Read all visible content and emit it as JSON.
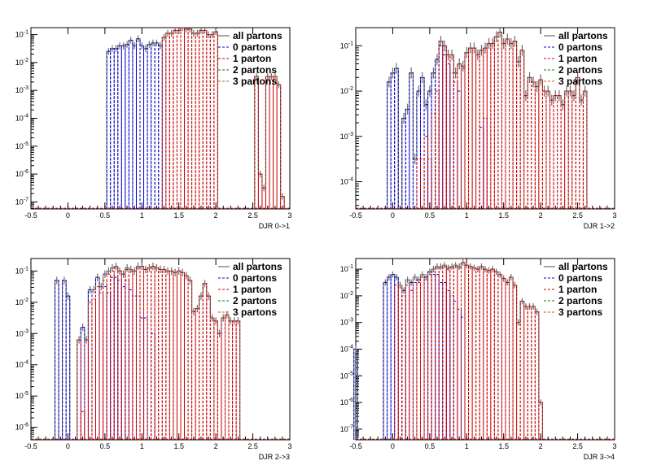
{
  "colors": {
    "all": "#6e6e6e",
    "zero": "#0000cc",
    "one": "#cc0000",
    "two": "#008800",
    "three": "#cc5500",
    "frame": "#000000"
  },
  "legend": {
    "entries": [
      {
        "key": "all",
        "label": "all partons"
      },
      {
        "key": "zero",
        "label": "0 partons"
      },
      {
        "key": "one",
        "label": "1 parton"
      },
      {
        "key": "two",
        "label": "2 partons"
      },
      {
        "key": "three",
        "label": "3 partons"
      }
    ]
  },
  "chart_data": [
    {
      "type": "line",
      "xlabel": "DJR 0->1",
      "ylabel": "",
      "xlim": [
        -0.5,
        3
      ],
      "ylim_log10": [
        -7.25,
        -0.75
      ],
      "xticks": [
        "-0.5",
        "0",
        "0.5",
        "1",
        "1.5",
        "2",
        "2.5",
        "3"
      ],
      "yticks": [
        "10^-7",
        "10^-6",
        "10^-5",
        "10^-4",
        "10^-3",
        "10^-2",
        "10^-1"
      ],
      "series": [
        {
          "name": "all partons",
          "key": "all",
          "step": true,
          "x": [
            0.55,
            0.6,
            0.65,
            0.7,
            0.75,
            0.8,
            0.85,
            0.9,
            0.95,
            1.0,
            1.05,
            1.1,
            1.15,
            1.2,
            1.25,
            1.3,
            1.35,
            1.4,
            1.45,
            1.5,
            1.55,
            1.6,
            1.65,
            1.7,
            1.75,
            1.8,
            1.85,
            1.9,
            1.95,
            2.0,
            2.55,
            2.6,
            2.65,
            2.7,
            2.75,
            2.8,
            2.85,
            2.9
          ],
          "y": [
            -1.6,
            -1.5,
            -1.5,
            -1.4,
            -1.4,
            -1.35,
            -1.2,
            -1.4,
            -1.15,
            -1.4,
            -1.5,
            -1.35,
            -1.3,
            -1.3,
            -1.4,
            -1.1,
            -0.95,
            -0.95,
            -0.85,
            -0.85,
            -0.75,
            -0.8,
            -0.8,
            -0.95,
            -0.95,
            -0.85,
            -0.85,
            -1.0,
            -1.0,
            -0.9,
            -2.5,
            -6.0,
            -6.5,
            -2.5,
            -2.5,
            -2.5,
            -2.8,
            -6.8
          ]
        },
        {
          "name": "0 partons",
          "key": "zero",
          "x": [
            0.55,
            0.6,
            0.65,
            0.7,
            0.75,
            0.8,
            0.85,
            0.9,
            0.95,
            1.0,
            1.05,
            1.1,
            1.15,
            1.2,
            1.25
          ],
          "y": [
            -1.6,
            -1.5,
            -1.5,
            -1.4,
            -1.4,
            -1.35,
            -1.2,
            -1.4,
            -1.15,
            -1.4,
            -1.5,
            -1.35,
            -1.3,
            -1.3,
            -1.4
          ]
        },
        {
          "name": "1 parton",
          "key": "one",
          "x": [
            1.3,
            1.35,
            1.4,
            1.45,
            1.5,
            1.55,
            1.6,
            1.65,
            1.7,
            1.75,
            1.8,
            1.85,
            1.9,
            1.95,
            2.0,
            2.55,
            2.6,
            2.65,
            2.7,
            2.75,
            2.8,
            2.85,
            2.9
          ],
          "y": [
            -1.1,
            -0.95,
            -0.95,
            -0.85,
            -0.85,
            -0.75,
            -0.8,
            -0.8,
            -0.95,
            -0.95,
            -0.85,
            -0.85,
            -1.0,
            -1.0,
            -0.9,
            -2.5,
            -6.0,
            -6.5,
            -2.5,
            -2.5,
            -2.5,
            -2.8,
            -6.8
          ]
        }
      ]
    },
    {
      "type": "line",
      "xlabel": "DJR 1->2",
      "ylabel": "",
      "xlim": [
        -0.5,
        3
      ],
      "ylim_log10": [
        -4.6,
        -0.6
      ],
      "xticks": [
        "-0.5",
        "0",
        "0.5",
        "1",
        "1.5",
        "2",
        "2.5",
        "3"
      ],
      "yticks": [
        "10^-4",
        "10^-3",
        "10^-2",
        "10^-1"
      ],
      "series": [
        {
          "name": "all partons",
          "key": "all",
          "step": true,
          "x": [
            -0.05,
            0.0,
            0.05,
            0.15,
            0.2,
            0.25,
            0.3,
            0.35,
            0.4,
            0.45,
            0.5,
            0.55,
            0.6,
            0.65,
            0.7,
            0.75,
            0.8,
            0.85,
            0.9,
            0.95,
            1.0,
            1.05,
            1.1,
            1.15,
            1.2,
            1.25,
            1.3,
            1.35,
            1.4,
            1.45,
            1.5,
            1.55,
            1.6,
            1.65,
            1.7,
            1.75,
            1.8,
            1.85,
            1.9,
            1.95,
            2.0,
            2.05,
            2.1,
            2.15,
            2.2,
            2.25,
            2.3,
            2.35,
            2.4,
            2.45,
            2.5,
            2.55,
            2.6
          ],
          "y": [
            -1.8,
            -1.6,
            -1.5,
            -2.6,
            -2.4,
            -1.6,
            -3.5,
            -2.0,
            -1.7,
            -2.3,
            -2.0,
            -1.6,
            -1.3,
            -0.9,
            -1.0,
            -1.2,
            -1.2,
            -1.6,
            -1.4,
            -1.45,
            -1.15,
            -1.05,
            -1.05,
            -1.2,
            -1.1,
            -1.05,
            -0.95,
            -0.95,
            -0.8,
            -0.7,
            -0.95,
            -0.85,
            -0.95,
            -0.9,
            -1.35,
            -1.1,
            -2.1,
            -1.7,
            -1.8,
            -1.9,
            -1.75,
            -2.0,
            -2.0,
            -2.2,
            -2.1,
            -2.1,
            -2.3,
            -2.0,
            -2.0,
            -2.1,
            -1.7,
            -2.2,
            -2.0
          ]
        },
        {
          "name": "0 partons",
          "key": "zero",
          "x": [
            -0.05,
            0.0,
            0.05,
            0.15,
            0.2,
            0.25,
            0.3,
            0.35,
            0.4,
            0.45,
            0.5,
            0.55,
            0.6,
            0.65,
            0.7,
            0.75,
            0.8,
            0.85,
            0.9,
            0.95,
            1.2,
            1.25
          ],
          "y": [
            -1.8,
            -1.6,
            -1.5,
            -2.6,
            -2.4,
            -1.6,
            -3.5,
            -2.0,
            -1.7,
            -2.3,
            -2.0,
            -1.6,
            -1.3,
            -1.0,
            -1.2,
            -1.4,
            -1.6,
            -1.8,
            -2.0,
            -1.5,
            -2.8,
            -2.6
          ]
        },
        {
          "name": "1 parton",
          "key": "one",
          "x": [
            0.35,
            0.4,
            0.45,
            0.5,
            0.55,
            0.6,
            0.65,
            0.7,
            0.75,
            0.8,
            0.85,
            0.9,
            0.95,
            1.0,
            1.05,
            1.1,
            1.15,
            1.2,
            1.25,
            1.3,
            1.35,
            1.4,
            1.45,
            1.5,
            1.55,
            1.6,
            1.65,
            1.7,
            1.75,
            1.8,
            1.85,
            1.9,
            1.95,
            2.0,
            2.05,
            2.1,
            2.15,
            2.2,
            2.25,
            2.3,
            2.35,
            2.4,
            2.45,
            2.5,
            2.55,
            2.6
          ],
          "y": [
            -3.5,
            -3.5,
            -3.0,
            -3.5,
            -2.5,
            -2.0,
            -0.9,
            -1.0,
            -1.2,
            -1.2,
            -1.6,
            -1.4,
            -1.45,
            -1.15,
            -1.05,
            -1.05,
            -1.2,
            -1.1,
            -1.05,
            -0.95,
            -0.95,
            -0.8,
            -0.7,
            -0.95,
            -0.85,
            -0.95,
            -0.9,
            -1.35,
            -1.1,
            -2.1,
            -1.7,
            -1.8,
            -1.9,
            -1.75,
            -2.0,
            -2.0,
            -2.2,
            -2.1,
            -2.1,
            -2.3,
            -2.0,
            -2.0,
            -2.1,
            -1.7,
            -2.2,
            -2.0
          ]
        }
      ]
    },
    {
      "type": "line",
      "xlabel": "DJR 2->3",
      "ylabel": "",
      "xlim": [
        -0.5,
        3
      ],
      "ylim_log10": [
        -6.4,
        -0.6
      ],
      "xticks": [
        "-0.5",
        "0",
        "0.5",
        "1",
        "1.5",
        "2",
        "2.5",
        "3"
      ],
      "yticks": [
        "10^-6",
        "10^-5",
        "10^-4",
        "10^-3",
        "10^-2",
        "10^-1"
      ],
      "series": [
        {
          "name": "all partons",
          "key": "all",
          "step": true,
          "x": [
            -0.15,
            -0.05,
            0.0,
            0.15,
            0.2,
            0.25,
            0.3,
            0.35,
            0.4,
            0.45,
            0.5,
            0.55,
            0.6,
            0.65,
            0.7,
            0.75,
            0.8,
            0.85,
            0.9,
            0.95,
            1.0,
            1.05,
            1.1,
            1.15,
            1.2,
            1.25,
            1.3,
            1.35,
            1.4,
            1.45,
            1.5,
            1.55,
            1.6,
            1.65,
            1.7,
            1.75,
            1.8,
            1.85,
            1.9,
            1.95,
            2.0,
            2.05,
            2.1,
            2.15,
            2.2,
            2.25,
            2.3
          ],
          "y": [
            -1.3,
            -1.3,
            -1.8,
            -3.2,
            -2.8,
            -3.2,
            -1.6,
            -1.6,
            -1.2,
            -1.5,
            -1.1,
            -1.0,
            -0.9,
            -0.85,
            -1.0,
            -1.1,
            -0.9,
            -0.95,
            -1.0,
            -0.85,
            -0.85,
            -0.95,
            -0.9,
            -0.85,
            -0.9,
            -0.95,
            -0.95,
            -1.0,
            -1.0,
            -1.05,
            -1.0,
            -1.05,
            -1.15,
            -1.3,
            -2.3,
            -2.2,
            -1.8,
            -1.4,
            -1.8,
            -2.5,
            -2.6,
            -3.0,
            -2.5,
            -2.4,
            -2.6,
            -2.6,
            -2.6
          ]
        },
        {
          "name": "0 partons",
          "key": "zero",
          "x": [
            -0.15,
            -0.05,
            0.0,
            0.2,
            0.3,
            0.4,
            0.5,
            0.55,
            0.6,
            0.65,
            0.7,
            0.75,
            0.8,
            0.85,
            0.9,
            0.95,
            1.0,
            1.05,
            1.15
          ],
          "y": [
            -1.3,
            -1.3,
            -1.8,
            -2.8,
            -1.6,
            -1.2,
            -1.5,
            -1.7,
            -1.2,
            -1.2,
            -1.3,
            -1.5,
            -1.3,
            -1.6,
            -1.8,
            -1.8,
            -2.5,
            -2.5,
            -3.0
          ]
        },
        {
          "name": "1 parton",
          "key": "one",
          "x": [
            0.15,
            0.2,
            0.25,
            0.3,
            0.35,
            0.4,
            0.45,
            0.5,
            0.55,
            0.6,
            0.65,
            0.7,
            0.75,
            0.8,
            0.85,
            0.9,
            0.95,
            1.0,
            1.05,
            1.1,
            1.15,
            1.2,
            1.25,
            1.3,
            1.35,
            1.4,
            1.45,
            1.5,
            1.55,
            1.6,
            1.65,
            1.7,
            1.75,
            1.8,
            1.85,
            1.9,
            1.95,
            2.0,
            2.05,
            2.1,
            2.15,
            2.2,
            2.25,
            2.3
          ],
          "y": [
            -3.2,
            -5.5,
            -3.2,
            -2.0,
            -1.9,
            -1.5,
            -1.7,
            -1.3,
            -1.1,
            -1.0,
            -0.9,
            -1.0,
            -1.1,
            -0.95,
            -1.0,
            -1.0,
            -0.9,
            -0.85,
            -0.95,
            -0.9,
            -0.85,
            -0.9,
            -0.95,
            -0.95,
            -1.0,
            -1.0,
            -1.05,
            -1.0,
            -1.05,
            -1.15,
            -1.3,
            -2.3,
            -2.2,
            -1.8,
            -1.4,
            -1.8,
            -2.5,
            -2.6,
            -3.0,
            -2.5,
            -2.4,
            -2.6,
            -2.6,
            -2.6
          ]
        }
      ]
    },
    {
      "type": "line",
      "xlabel": "DJR 3->4",
      "ylabel": "",
      "xlim": [
        -0.5,
        3
      ],
      "ylim_log10": [
        -7.4,
        -0.6
      ],
      "xticks": [
        "-0.5",
        "0",
        "0.5",
        "1",
        "1.5",
        "2",
        "2.5",
        "3"
      ],
      "yticks": [
        "10^-7",
        "10^-6",
        "10^-5",
        "10^-4",
        "10^-3",
        "10^-2",
        "10^-1"
      ],
      "series": [
        {
          "name": "all partons",
          "key": "all",
          "step": true,
          "x": [
            -0.5,
            -0.1,
            -0.05,
            0.0,
            0.05,
            0.1,
            0.15,
            0.2,
            0.25,
            0.3,
            0.35,
            0.4,
            0.45,
            0.5,
            0.55,
            0.6,
            0.65,
            0.7,
            0.75,
            0.8,
            0.85,
            0.9,
            0.95,
            1.0,
            1.05,
            1.1,
            1.15,
            1.2,
            1.25,
            1.3,
            1.35,
            1.4,
            1.45,
            1.5,
            1.55,
            1.6,
            1.65,
            1.7,
            1.75,
            1.8,
            1.85,
            1.9,
            1.95,
            2.0
          ],
          "y": [
            -4.0,
            -1.5,
            -1.3,
            -1.2,
            -1.3,
            -1.6,
            -1.8,
            -1.4,
            -1.5,
            -1.3,
            -1.4,
            -1.2,
            -1.3,
            -1.1,
            -1.0,
            -0.9,
            -0.9,
            -0.85,
            -0.95,
            -0.9,
            -0.85,
            -0.9,
            -0.75,
            -0.85,
            -0.9,
            -0.95,
            -1.0,
            -0.9,
            -1.0,
            -1.05,
            -1.0,
            -1.1,
            -1.2,
            -1.35,
            -1.5,
            -1.3,
            -1.6,
            -3.0,
            -2.2,
            -2.4,
            -2.4,
            -2.4,
            -2.6,
            -6.0
          ]
        },
        {
          "name": "0 partons",
          "key": "zero",
          "x": [
            -0.5,
            -0.1,
            -0.05,
            0.0,
            0.05,
            0.15,
            0.25,
            0.35,
            0.45,
            0.5,
            0.55,
            0.6,
            0.65,
            0.7,
            0.75,
            0.8,
            0.85,
            0.9,
            0.95
          ],
          "y": [
            -4.0,
            -1.5,
            -1.3,
            -1.2,
            -1.3,
            -1.8,
            -1.5,
            -1.4,
            -1.3,
            -1.1,
            -1.2,
            -1.2,
            -1.5,
            -1.5,
            -1.8,
            -2.0,
            -2.2,
            -2.5,
            -2.8
          ]
        },
        {
          "name": "1 parton",
          "key": "one",
          "x": [
            0.05,
            0.1,
            0.15,
            0.2,
            0.25,
            0.3,
            0.35,
            0.4,
            0.45,
            0.5,
            0.55,
            0.6,
            0.65,
            0.7,
            0.75,
            0.8,
            0.85,
            0.9,
            0.95,
            1.0,
            1.05,
            1.1,
            1.15,
            1.2,
            1.25,
            1.3,
            1.35,
            1.4,
            1.45,
            1.5,
            1.55,
            1.6,
            1.65,
            1.7,
            1.75,
            1.8,
            1.85,
            1.9,
            1.95,
            2.0
          ],
          "y": [
            -1.6,
            -1.7,
            -2.0,
            -1.6,
            -1.8,
            -1.5,
            -1.5,
            -1.3,
            -1.4,
            -1.2,
            -1.1,
            -0.95,
            -0.95,
            -0.9,
            -1.0,
            -0.95,
            -0.9,
            -0.95,
            -0.75,
            -0.85,
            -0.9,
            -0.95,
            -1.0,
            -0.9,
            -1.0,
            -1.05,
            -1.0,
            -1.1,
            -1.2,
            -1.35,
            -1.5,
            -1.3,
            -1.6,
            -3.0,
            -2.2,
            -2.4,
            -2.4,
            -2.4,
            -2.6,
            -6.0
          ]
        }
      ]
    }
  ]
}
